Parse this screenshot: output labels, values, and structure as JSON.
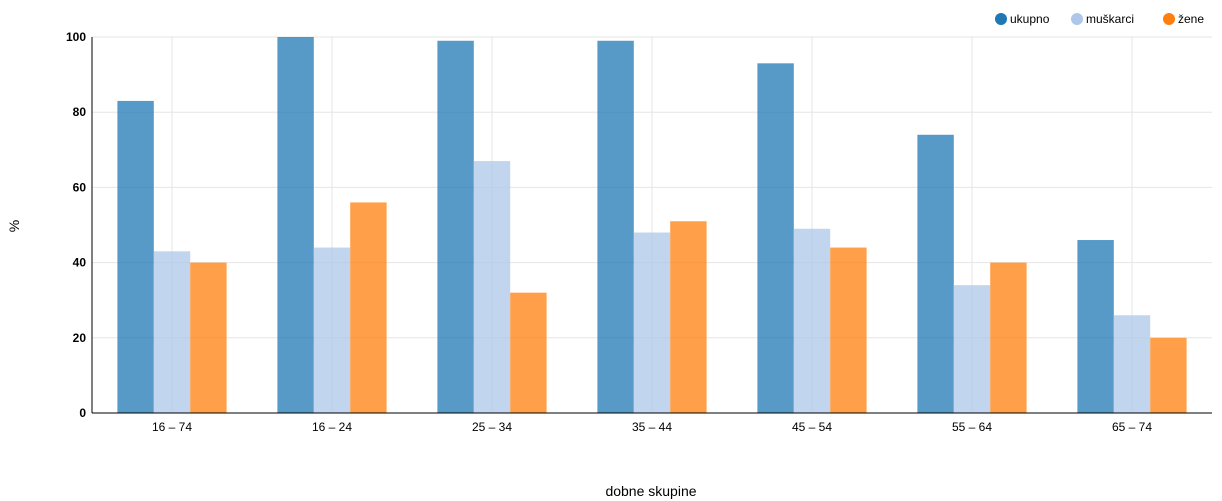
{
  "chart_data": {
    "type": "bar",
    "categories": [
      "16 – 74",
      "16 – 24",
      "25 – 34",
      "35 – 44",
      "45 – 54",
      "55 – 64",
      "65 – 74"
    ],
    "series": [
      {
        "name": "ukupno",
        "color": "#1f77b4",
        "values": [
          83,
          100,
          99,
          99,
          93,
          74,
          46
        ]
      },
      {
        "name": "muškarci",
        "color": "#aec7e8",
        "values": [
          43,
          44,
          67,
          48,
          49,
          34,
          26
        ]
      },
      {
        "name": "žene",
        "color": "#ff7f0e",
        "values": [
          40,
          56,
          32,
          51,
          44,
          40,
          20
        ]
      }
    ],
    "xlabel": "dobne skupine",
    "ylabel": "%",
    "ylim": [
      0,
      100
    ],
    "yticks": [
      0,
      20,
      40,
      60,
      80,
      100
    ],
    "grid": true,
    "legend": "top-right"
  }
}
